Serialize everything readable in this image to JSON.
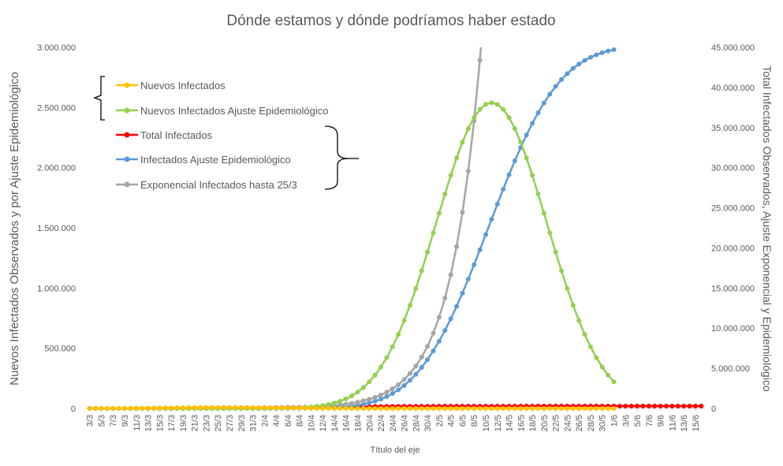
{
  "chart_data": {
    "type": "line",
    "title": "Dónde estamos y dónde podríamos haber estado",
    "xlabel": "Título del eje",
    "ylabel_left": "Nuevos Infectados Observados y por Ajuste Epidemiológico",
    "ylabel_right": "Total Infectados Observados, Ajuste Exponencial y Epidemiológico",
    "left_axis": {
      "min": 0,
      "max": 3000000,
      "ticks": [
        0,
        500000,
        1000000,
        1500000,
        2000000,
        2500000,
        3000000
      ],
      "tick_labels": [
        "0",
        "500.000",
        "1.000.000",
        "1.500.000",
        "2.000.000",
        "2.500.000",
        "3.000.000"
      ]
    },
    "right_axis": {
      "min": 0,
      "max": 45000000,
      "ticks": [
        0,
        5000000,
        10000000,
        15000000,
        20000000,
        25000000,
        30000000,
        35000000,
        40000000,
        45000000
      ],
      "tick_labels": [
        "0",
        "5.000.000",
        "10.000.000",
        "15.000.000",
        "20.000.000",
        "25.000.000",
        "30.000.000",
        "35.000.000",
        "40.000.000",
        "45.000.000"
      ]
    },
    "x_start": "2020-03-03",
    "x_end": "2020-06-16",
    "x_tick_labels": [
      "3/3",
      "5/3",
      "7/3",
      "9/3",
      "11/3",
      "13/3",
      "15/3",
      "17/3",
      "19/3",
      "21/3",
      "23/3",
      "25/3",
      "27/3",
      "29/3",
      "31/3",
      "2/4",
      "4/4",
      "6/4",
      "8/4",
      "10/4",
      "12/4",
      "14/4",
      "16/4",
      "18/4",
      "20/4",
      "22/4",
      "24/4",
      "26/4",
      "28/4",
      "30/4",
      "2/5",
      "4/5",
      "6/5",
      "8/5",
      "10/5",
      "12/5",
      "14/5",
      "16/5",
      "18/5",
      "20/5",
      "22/5",
      "24/5",
      "26/5",
      "28/5",
      "30/5",
      "1/6",
      "3/6",
      "5/6",
      "7/6",
      "9/6",
      "11/6",
      "13/6",
      "15/6"
    ],
    "legend_placement": "top-left",
    "legend_groups": [
      {
        "axis": "left",
        "series": [
          "Nuevos Infectados",
          "Nuevos Infectados Ajuste Epidemiológico"
        ]
      },
      {
        "axis": "right",
        "series": [
          "Total Infectados",
          "Infectados Ajuste Epidemiológico",
          "Exponencial Infectados hasta 25/3"
        ]
      }
    ],
    "series": [
      {
        "name": "Nuevos Infectados",
        "axis": "left",
        "color": "#ffc000",
        "x_start": "2020-03-03",
        "x_end": "2020-06-01",
        "peak_date": "2020-03-26",
        "peak_value": 8500
      },
      {
        "name": "Nuevos Infectados Ajuste Epidemiológico",
        "axis": "left",
        "color": "#92d050",
        "x_start": "2020-03-03",
        "x_end": "2020-06-01",
        "peak_date": "2020-05-11",
        "peak_value": 2540000,
        "width_days": 9.5
      },
      {
        "name": "Total Infectados",
        "axis": "right",
        "color": "#ff0000",
        "x_start": "2020-03-03",
        "x_end": "2020-06-16",
        "final_value": 290000
      },
      {
        "name": "Infectados Ajuste Epidemiológico",
        "axis": "right",
        "color": "#5b9bd5",
        "x_start": "2020-03-03",
        "x_end": "2020-06-01",
        "final_value": 44700000
      },
      {
        "name": "Exponencial Infectados hasta 25/3",
        "axis": "right",
        "color": "#a5a5a5",
        "x_start": "2020-03-03",
        "x_end": "2020-05-10",
        "value_2020-05-09": 43400000,
        "doubling_days": 3.62
      }
    ],
    "grid": false
  }
}
